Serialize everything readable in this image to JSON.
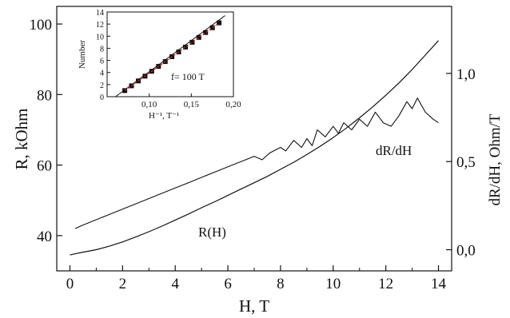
{
  "chart_data": [
    {
      "type": "line",
      "xlabel": "H, T",
      "ylabel_left": "R, kOhm",
      "ylabel_right": "dR/dH, Ohm/T",
      "xlim": [
        -0.5,
        14.5
      ],
      "ylim_left": [
        30,
        105
      ],
      "ylim_right": [
        -0.12,
        1.38
      ],
      "x_ticks": [
        "0",
        "2",
        "4",
        "6",
        "8",
        "10",
        "12",
        "14"
      ],
      "y_ticks_left": [
        "40",
        "60",
        "80",
        "100"
      ],
      "y_ticks_right": [
        "0,0",
        "0,5",
        "1,0"
      ],
      "grid": false,
      "series": [
        {
          "name": "R(H)",
          "axis": "left",
          "x": [
            0,
            0.3,
            0.5,
            1,
            1.5,
            2,
            2.5,
            3,
            3.5,
            4,
            4.5,
            5,
            5.5,
            6,
            6.5,
            7,
            7.5,
            8,
            8.5,
            9,
            9.5,
            10,
            10.5,
            11,
            11.5,
            12,
            12.5,
            13,
            13.5,
            14
          ],
          "y": [
            34.5,
            35,
            35.3,
            36,
            37,
            38.2,
            39.6,
            41.1,
            42.7,
            44.4,
            46.1,
            47.9,
            49.6,
            51.4,
            53.2,
            55,
            56.8,
            58.8,
            60.8,
            63,
            65.3,
            67.8,
            70.5,
            73.4,
            76.5,
            79.8,
            83.3,
            87.1,
            91.2,
            95.3
          ]
        },
        {
          "name": "dR/dH",
          "axis": "right",
          "x": [
            0.2,
            0.5,
            1,
            1.5,
            2,
            2.5,
            3,
            3.5,
            4,
            4.5,
            5,
            5.5,
            6,
            6.5,
            7,
            7.3,
            7.6,
            8,
            8.2,
            8.5,
            8.8,
            9,
            9.2,
            9.4,
            9.7,
            10,
            10.2,
            10.4,
            10.7,
            11,
            11.3,
            11.6,
            11.9,
            12.2,
            12.5,
            12.8,
            13,
            13.2,
            13.5,
            13.8,
            14
          ],
          "y": [
            0.12,
            0.14,
            0.17,
            0.2,
            0.23,
            0.26,
            0.29,
            0.32,
            0.35,
            0.38,
            0.41,
            0.44,
            0.47,
            0.5,
            0.53,
            0.51,
            0.55,
            0.58,
            0.56,
            0.62,
            0.58,
            0.63,
            0.59,
            0.68,
            0.64,
            0.7,
            0.66,
            0.72,
            0.68,
            0.74,
            0.7,
            0.78,
            0.72,
            0.7,
            0.76,
            0.84,
            0.8,
            0.86,
            0.78,
            0.74,
            0.72
          ]
        }
      ],
      "annotations": [
        "R(H)",
        "dR/dH"
      ]
    },
    {
      "type": "scatter",
      "xlabel": "H⁻¹, T⁻¹",
      "ylabel": "Number",
      "xlim": [
        0.05,
        0.2
      ],
      "ylim": [
        0,
        14
      ],
      "x_ticks": [
        "0,10",
        "0,15",
        "0,20"
      ],
      "y_ticks": [
        "0",
        "2",
        "4",
        "6",
        "8",
        "10",
        "12",
        "14"
      ],
      "annotation": "f= 100 T",
      "points": {
        "x": [
          0.071,
          0.079,
          0.087,
          0.095,
          0.103,
          0.111,
          0.119,
          0.127,
          0.135,
          0.143,
          0.151,
          0.159,
          0.167,
          0.175,
          0.183
        ],
        "y": [
          1,
          1.8,
          2.6,
          3.4,
          4.2,
          5,
          5.8,
          6.6,
          7.4,
          8.2,
          9,
          9.8,
          10.6,
          11.4,
          12.2
        ]
      },
      "fit_line": {
        "x": [
          0.06,
          0.19
        ],
        "y": [
          0,
          13.4
        ]
      }
    }
  ]
}
